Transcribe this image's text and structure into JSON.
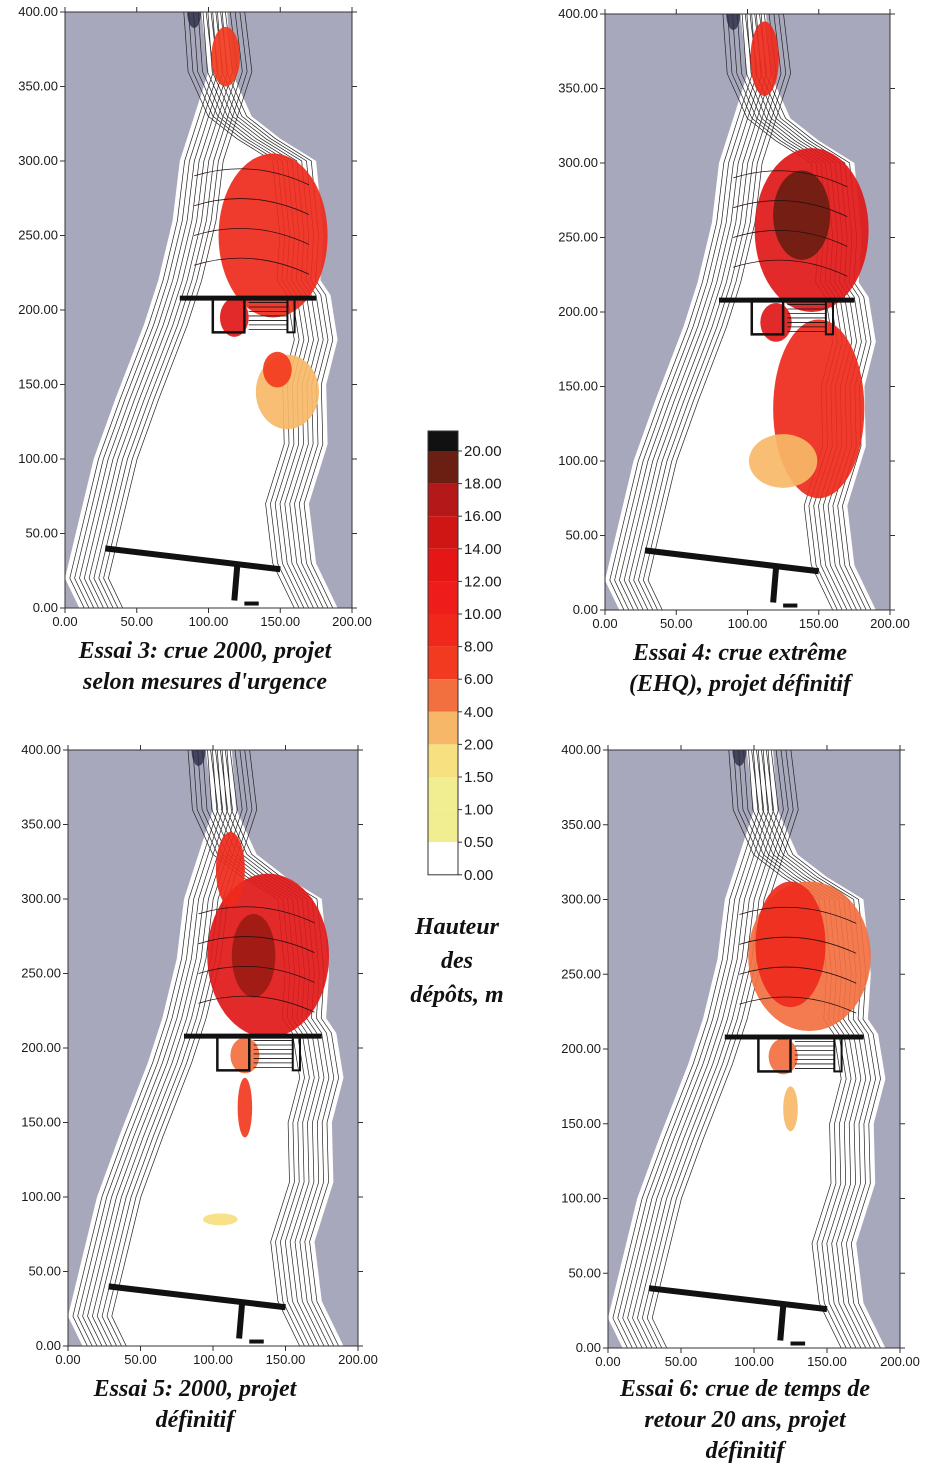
{
  "chart_data": [
    {
      "type": "heatmap",
      "title": "Essai 3: crue 2000, projet selon mesures d'urgence",
      "title_lines": [
        "Essai 3: crue 2000, projet",
        "selon mesures d'urgence"
      ],
      "xlim": [
        0,
        200
      ],
      "ylim": [
        0,
        400
      ],
      "xticks": [
        "0.00",
        "50.00",
        "100.00",
        "150.00",
        "200.00"
      ],
      "yticks": [
        "0.00",
        "50.00",
        "100.00",
        "150.00",
        "200.00",
        "250.00",
        "300.00",
        "350.00",
        "400.00"
      ],
      "deposits": [
        {
          "x": 145,
          "y": 250,
          "rx": 38,
          "ry": 55,
          "value": 8
        },
        {
          "x": 112,
          "y": 370,
          "rx": 10,
          "ry": 20,
          "value": 4
        },
        {
          "x": 118,
          "y": 195,
          "rx": 10,
          "ry": 13,
          "value": 10
        },
        {
          "x": 155,
          "y": 145,
          "rx": 22,
          "ry": 25,
          "value": 1.5
        },
        {
          "x": 148,
          "y": 160,
          "rx": 10,
          "ry": 12,
          "value": 4
        }
      ]
    },
    {
      "type": "heatmap",
      "title": "Essai 4: crue extrême (EHQ), projet définitif",
      "title_lines": [
        "Essai 4: crue extrême",
        "(EHQ), projet définitif"
      ],
      "xlim": [
        0,
        200
      ],
      "ylim": [
        0,
        400
      ],
      "xticks": [
        "0.00",
        "50.00",
        "100.00",
        "150.00",
        "200.00"
      ],
      "yticks": [
        "0.00",
        "50.00",
        "100.00",
        "150.00",
        "200.00",
        "250.00",
        "300.00",
        "350.00",
        "400.00"
      ],
      "deposits": [
        {
          "x": 145,
          "y": 255,
          "rx": 40,
          "ry": 55,
          "value": 10
        },
        {
          "x": 138,
          "y": 265,
          "rx": 20,
          "ry": 30,
          "value": 18
        },
        {
          "x": 112,
          "y": 370,
          "rx": 10,
          "ry": 25,
          "value": 6
        },
        {
          "x": 150,
          "y": 135,
          "rx": 32,
          "ry": 60,
          "value": 6
        },
        {
          "x": 125,
          "y": 100,
          "rx": 24,
          "ry": 18,
          "value": 1.5
        },
        {
          "x": 120,
          "y": 193,
          "rx": 11,
          "ry": 13,
          "value": 10
        }
      ]
    },
    {
      "type": "heatmap",
      "title": "Essai 5: 2000, projet définitif",
      "title_lines": [
        "Essai 5: 2000, projet",
        "définitif"
      ],
      "xlim": [
        0,
        200
      ],
      "ylim": [
        0,
        400
      ],
      "xticks": [
        "0.00",
        "50.00",
        "100.00",
        "150.00",
        "200.00"
      ],
      "yticks": [
        "0.00",
        "50.00",
        "100.00",
        "150.00",
        "200.00",
        "250.00",
        "300.00",
        "350.00",
        "400.00"
      ],
      "deposits": [
        {
          "x": 138,
          "y": 262,
          "rx": 42,
          "ry": 55,
          "value": 10
        },
        {
          "x": 128,
          "y": 262,
          "rx": 15,
          "ry": 28,
          "value": 16
        },
        {
          "x": 112,
          "y": 320,
          "rx": 10,
          "ry": 25,
          "value": 8
        },
        {
          "x": 122,
          "y": 195,
          "rx": 10,
          "ry": 12,
          "value": 2
        },
        {
          "x": 122,
          "y": 160,
          "rx": 5,
          "ry": 20,
          "value": 4
        },
        {
          "x": 105,
          "y": 85,
          "rx": 12,
          "ry": 4,
          "value": 1
        }
      ]
    },
    {
      "type": "heatmap",
      "title": "Essai 6: crue de temps de retour 20 ans, projet définitif",
      "title_lines": [
        "Essai 6: crue de temps de",
        "retour 20 ans, projet",
        "définitif"
      ],
      "xlim": [
        0,
        200
      ],
      "ylim": [
        0,
        400
      ],
      "xticks": [
        "0.00",
        "50.00",
        "100.00",
        "150.00",
        "200.00"
      ],
      "yticks": [
        "0.00",
        "50.00",
        "100.00",
        "150.00",
        "200.00",
        "250.00",
        "300.00",
        "350.00",
        "400.00"
      ],
      "deposits": [
        {
          "x": 138,
          "y": 262,
          "rx": 42,
          "ry": 50,
          "value": 2
        },
        {
          "x": 125,
          "y": 270,
          "rx": 24,
          "ry": 42,
          "value": 6
        },
        {
          "x": 120,
          "y": 195,
          "rx": 10,
          "ry": 12,
          "value": 2
        },
        {
          "x": 125,
          "y": 160,
          "rx": 5,
          "ry": 15,
          "value": 1.5
        }
      ]
    }
  ],
  "legend": {
    "title_lines": [
      "Hauteur",
      "des",
      "dépôts, m"
    ],
    "stops": [
      {
        "label": "20.00",
        "color": "#1a0d0d"
      },
      {
        "label": "18.00",
        "color": "#6b1e12"
      },
      {
        "label": "16.00",
        "color": "#b51818"
      },
      {
        "label": "14.00",
        "color": "#d01515"
      },
      {
        "label": "12.00",
        "color": "#e41616"
      },
      {
        "label": "10.00",
        "color": "#ee1c1a"
      },
      {
        "label": "8.00",
        "color": "#f0281c"
      },
      {
        "label": "6.00",
        "color": "#f23a20"
      },
      {
        "label": "4.00",
        "color": "#f27040"
      },
      {
        "label": "2.00",
        "color": "#f6b868"
      },
      {
        "label": "1.50",
        "color": "#f6e080"
      },
      {
        "label": "1.00",
        "color": "#f0ee90"
      },
      {
        "label": "0.50",
        "color": "#ffffff"
      },
      {
        "label": "0.00",
        "color": "#ffffff"
      }
    ]
  },
  "colors": {
    "background_land": "#a8a8bd",
    "contour_line": "#222222",
    "structure": "#111111"
  }
}
